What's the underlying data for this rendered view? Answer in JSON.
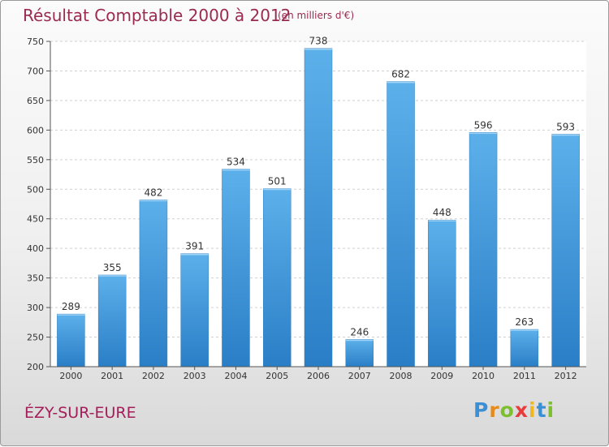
{
  "chart_data": {
    "type": "bar",
    "title": "Résultat Comptable 2000 à 2012",
    "subtitle": "(en milliers d'€)",
    "categories": [
      "2000",
      "2001",
      "2002",
      "2003",
      "2004",
      "2005",
      "2006",
      "2007",
      "2008",
      "2009",
      "2010",
      "2011",
      "2012"
    ],
    "values": [
      289,
      355,
      482,
      391,
      534,
      501,
      738,
      246,
      682,
      448,
      596,
      263,
      593
    ],
    "ylim": [
      200,
      750
    ],
    "yticks": [
      200,
      250,
      300,
      350,
      400,
      450,
      500,
      550,
      600,
      650,
      700,
      750
    ],
    "grid": true,
    "xlabel": "",
    "ylabel": "",
    "bar_color": "#4a9fde",
    "title_color": "#9a2a4f"
  },
  "commune": "ÉZY-SUR-EURE",
  "logo": {
    "letters": [
      "P",
      "r",
      "o",
      "x",
      "i",
      "t",
      "i"
    ],
    "colors": [
      "#3b8fd4",
      "#e88a1a",
      "#7cbf2f",
      "#e83c3c",
      "#f2b71f",
      "#3b8fd4",
      "#7cbf2f"
    ]
  }
}
